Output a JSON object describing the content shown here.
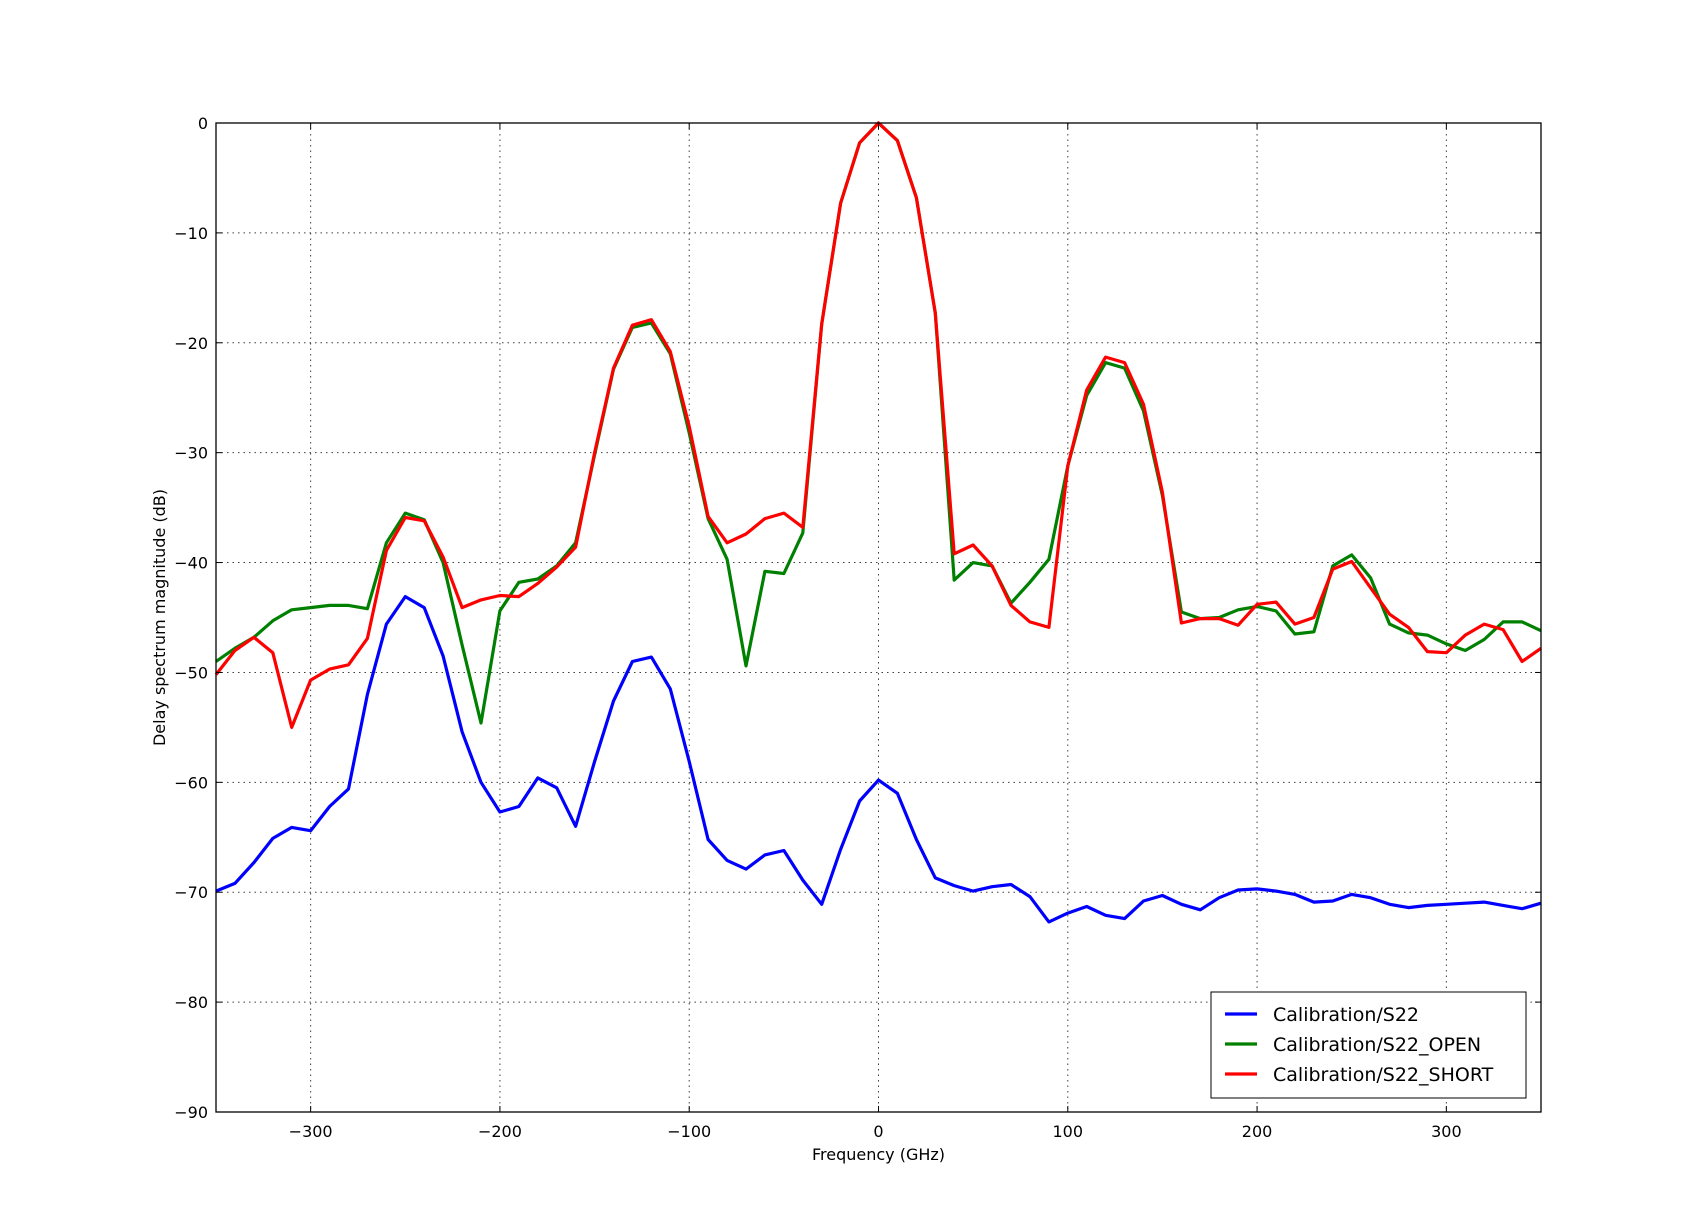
{
  "chart_data": {
    "type": "line",
    "title": "",
    "xlabel": "Frequency (GHz)",
    "ylabel": "Delay spectrum magnitude (dB)",
    "xlim": [
      -350,
      350
    ],
    "ylim": [
      -90,
      0
    ],
    "xticks": [
      -300,
      -200,
      -100,
      0,
      100,
      200,
      300
    ],
    "yticks": [
      0,
      -10,
      -20,
      -30,
      -40,
      -50,
      -60,
      -70,
      -80,
      -90
    ],
    "xtick_labels": [
      "−300",
      "−200",
      "−100",
      "0",
      "100",
      "200",
      "300"
    ],
    "ytick_labels": [
      "0",
      "−10",
      "−20",
      "−30",
      "−40",
      "−50",
      "−60",
      "−70",
      "−80",
      "−90"
    ],
    "grid": true,
    "legend_position": "lower-right",
    "x": [
      -350,
      -340,
      -330,
      -320,
      -310,
      -300,
      -290,
      -280,
      -270,
      -260,
      -250,
      -240,
      -230,
      -220,
      -210,
      -200,
      -190,
      -180,
      -170,
      -160,
      -150,
      -140,
      -130,
      -120,
      -110,
      -100,
      -90,
      -80,
      -70,
      -60,
      -50,
      -40,
      -30,
      -20,
      -10,
      0,
      10,
      20,
      30,
      40,
      50,
      60,
      70,
      80,
      90,
      100,
      110,
      120,
      130,
      140,
      150,
      160,
      170,
      180,
      190,
      200,
      210,
      220,
      230,
      240,
      250,
      260,
      270,
      280,
      290,
      300,
      310,
      320,
      330,
      340,
      350
    ],
    "series": [
      {
        "name": "Calibration/S22",
        "color": "#0000ff",
        "values": [
          -69.9,
          -69.2,
          -67.3,
          -65.1,
          -64.1,
          -64.4,
          -62.2,
          -60.6,
          -52,
          -45.6,
          -43.1,
          -44.1,
          -48.5,
          -55.4,
          -60,
          -62.7,
          -62.2,
          -59.6,
          -60.5,
          -64,
          -58.1,
          -52.6,
          -49,
          -48.6,
          -51.5,
          -58.1,
          -65.2,
          -67.1,
          -67.9,
          -66.6,
          -66.2,
          -68.9,
          -71.1,
          -66.1,
          -61.7,
          -59.8,
          -61,
          -65.2,
          -68.7,
          -69.4,
          -69.9,
          -69.5,
          -69.3,
          -70.4,
          -72.7,
          -71.9,
          -71.3,
          -72.1,
          -72.4,
          -70.8,
          -70.3,
          -71.1,
          -71.6,
          -70.5,
          -69.8,
          -69.7,
          -69.9,
          -70.2,
          -70.9,
          -70.8,
          -70.2,
          -70.5,
          -71.1,
          -71.4,
          -71.2,
          -71.1,
          -71,
          -70.9,
          -71.2,
          -71.5,
          -71
        ]
      },
      {
        "name": "Calibration/S22_OPEN",
        "color": "#008000",
        "values": [
          -49,
          -47.8,
          -46.8,
          -45.3,
          -44.3,
          -44.1,
          -43.9,
          -43.9,
          -44.2,
          -38.2,
          -35.5,
          -36.1,
          -40,
          -47.5,
          -54.6,
          -44.4,
          -41.8,
          -41.5,
          -40.3,
          -38.2,
          -30.2,
          -22.4,
          -18.6,
          -18.2,
          -21,
          -28.2,
          -36,
          -39.7,
          -49.4,
          -40.8,
          -41,
          -37.3,
          -18.3,
          -7.3,
          -1.8,
          0,
          -1.6,
          -6.8,
          -17.3,
          -41.6,
          -40,
          -40.3,
          -43.7,
          -41.8,
          -39.7,
          -31.2,
          -24.8,
          -21.8,
          -22.3,
          -26.2,
          -33.9,
          -44.5,
          -45.1,
          -45,
          -44.3,
          -44,
          -44.4,
          -46.5,
          -46.3,
          -40.3,
          -39.3,
          -41.4,
          -45.6,
          -46.4,
          -46.6,
          -47.4,
          -48,
          -47,
          -45.4,
          -45.4,
          -46.2
        ]
      },
      {
        "name": "Calibration/S22_SHORT",
        "color": "#ff0000",
        "values": [
          -50.2,
          -48,
          -46.8,
          -48.2,
          -55,
          -50.7,
          -49.7,
          -49.3,
          -46.9,
          -38.9,
          -35.9,
          -36.2,
          -39.5,
          -44.1,
          -43.4,
          -43,
          -43.1,
          -41.9,
          -40.4,
          -38.6,
          -30,
          -22.3,
          -18.4,
          -17.9,
          -20.8,
          -27.6,
          -35.8,
          -38.2,
          -37.4,
          -36,
          -35.5,
          -36.8,
          -18.3,
          -7.3,
          -1.8,
          0,
          -1.6,
          -6.8,
          -17.3,
          -39.2,
          -38.4,
          -40.3,
          -43.9,
          -45.4,
          -45.9,
          -31.2,
          -24.3,
          -21.3,
          -21.8,
          -25.6,
          -33.6,
          -45.5,
          -45.1,
          -45.1,
          -45.7,
          -43.8,
          -43.6,
          -45.6,
          -45,
          -40.6,
          -39.9,
          -42.3,
          -44.7,
          -45.9,
          -48.1,
          -48.2,
          -46.6,
          -45.6,
          -46.1,
          -49,
          -47.8
        ]
      }
    ]
  }
}
